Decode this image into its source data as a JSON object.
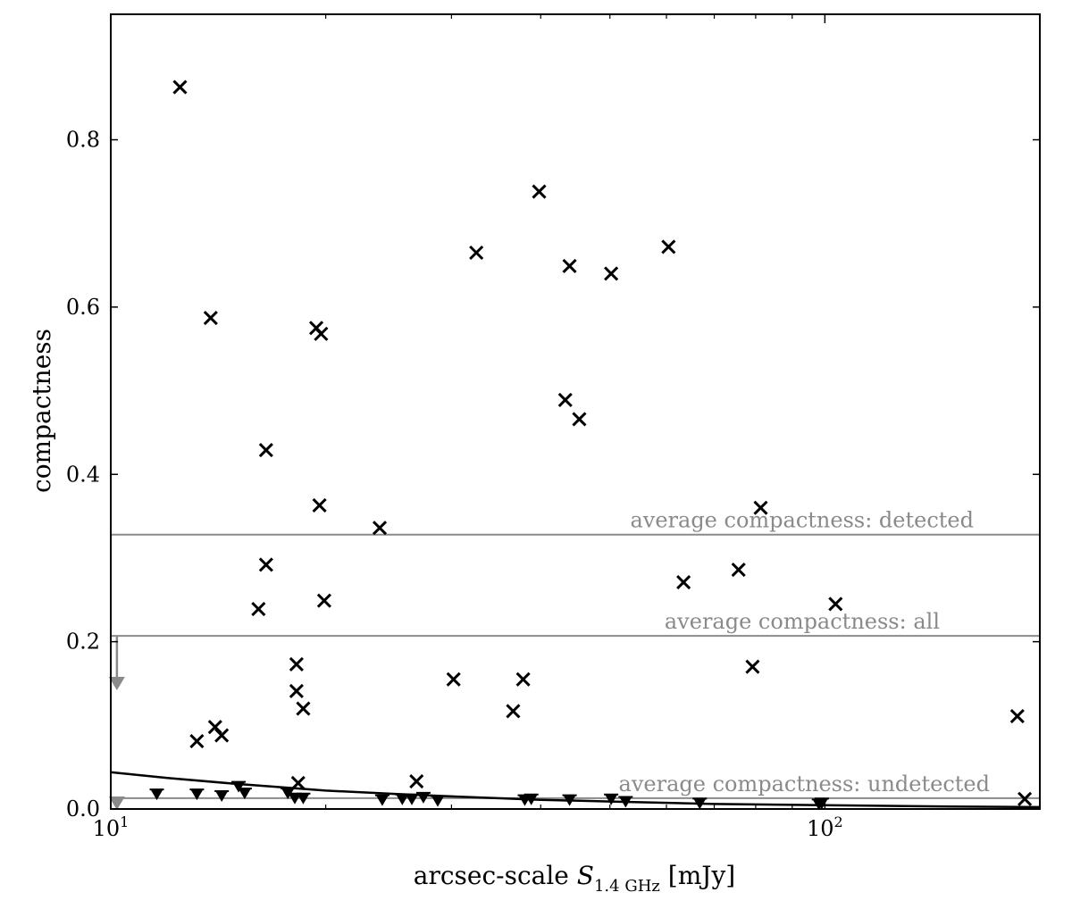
{
  "chart_data": {
    "type": "scatter",
    "x_scale": "log",
    "xlim": [
      10,
      200
    ],
    "ylim": [
      0,
      0.95
    ],
    "xlabel": "arcsec-scale S_1.4 GHz [mJy]",
    "xlabel_parts": {
      "main": "arcsec-scale ",
      "symbol": "S",
      "subscript": "1.4 GHz",
      "unit": " [mJy]"
    },
    "ylabel": "compactness",
    "x_ticks": [
      {
        "value": 10,
        "base": "10",
        "exp": "1"
      },
      {
        "value": 100,
        "base": "10",
        "exp": "2"
      }
    ],
    "y_ticks": [
      {
        "value": 0.0,
        "label": "0.0"
      },
      {
        "value": 0.2,
        "label": "0.2"
      },
      {
        "value": 0.4,
        "label": "0.4"
      },
      {
        "value": 0.6,
        "label": "0.6"
      },
      {
        "value": 0.8,
        "label": "0.8"
      }
    ],
    "grid": false,
    "series": [
      {
        "marker": "x",
        "color": "#000000",
        "points": [
          [
            12.5,
            0.863
          ],
          [
            13.8,
            0.587
          ],
          [
            16.5,
            0.429
          ],
          [
            16.5,
            0.292
          ],
          [
            16.1,
            0.239
          ],
          [
            19.4,
            0.575
          ],
          [
            19.7,
            0.568
          ],
          [
            19.6,
            0.363
          ],
          [
            19.9,
            0.249
          ],
          [
            18.2,
            0.173
          ],
          [
            18.2,
            0.141
          ],
          [
            18.6,
            0.12
          ],
          [
            18.3,
            0.031
          ],
          [
            13.2,
            0.081
          ],
          [
            14.0,
            0.098
          ],
          [
            14.3,
            0.088
          ],
          [
            23.8,
            0.336
          ],
          [
            26.8,
            0.033
          ],
          [
            30.2,
            0.155
          ],
          [
            32.5,
            0.665
          ],
          [
            36.6,
            0.117
          ],
          [
            37.8,
            0.155
          ],
          [
            39.8,
            0.738
          ],
          [
            43.3,
            0.489
          ],
          [
            43.9,
            0.649
          ],
          [
            45.3,
            0.466
          ],
          [
            50.2,
            0.64
          ],
          [
            60.4,
            0.672
          ],
          [
            63.4,
            0.271
          ],
          [
            75.7,
            0.286
          ],
          [
            79.2,
            0.17
          ],
          [
            81.3,
            0.36
          ],
          [
            103.5,
            0.245
          ],
          [
            186.0,
            0.111
          ],
          [
            190.5,
            0.012
          ]
        ]
      },
      {
        "marker": "triangle-down",
        "color": "#000000",
        "points": [
          [
            11.6,
            0.017
          ],
          [
            13.2,
            0.017
          ],
          [
            14.3,
            0.015
          ],
          [
            15.1,
            0.026
          ],
          [
            15.4,
            0.018
          ],
          [
            17.7,
            0.018
          ],
          [
            18.1,
            0.012
          ],
          [
            18.6,
            0.012
          ],
          [
            24.0,
            0.01
          ],
          [
            25.6,
            0.011
          ],
          [
            26.4,
            0.011
          ],
          [
            27.4,
            0.013
          ],
          [
            28.7,
            0.009
          ],
          [
            38.0,
            0.01
          ],
          [
            38.8,
            0.011
          ],
          [
            43.9,
            0.01
          ],
          [
            50.2,
            0.011
          ],
          [
            52.6,
            0.008
          ],
          [
            66.8,
            0.006
          ],
          [
            98.1,
            0.005
          ],
          [
            99.0,
            0.006
          ]
        ]
      }
    ],
    "reference_lines": [
      {
        "y": 0.328,
        "color": "#8a8a8a",
        "label": "average compactness: detected"
      },
      {
        "y": 0.207,
        "color": "#8a8a8a",
        "label": "average compactness: all"
      },
      {
        "y": 0.013,
        "color": "#8a8a8a",
        "label": "average compactness: undetected"
      }
    ],
    "curve": {
      "color": "#000000",
      "points": [
        [
          10,
          0.044
        ],
        [
          12,
          0.037
        ],
        [
          15,
          0.03
        ],
        [
          20,
          0.022
        ],
        [
          25,
          0.018
        ],
        [
          30,
          0.015
        ],
        [
          40,
          0.011
        ],
        [
          50,
          0.009
        ],
        [
          70,
          0.006
        ],
        [
          100,
          0.0045
        ],
        [
          150,
          0.003
        ],
        [
          200,
          0.0022
        ]
      ]
    },
    "upper_limit_arrows": [
      {
        "x": 10.2,
        "from": 0.207,
        "to": 0.143
      },
      {
        "x": 10.2,
        "from": 0.013,
        "to": 0.0
      }
    ]
  }
}
